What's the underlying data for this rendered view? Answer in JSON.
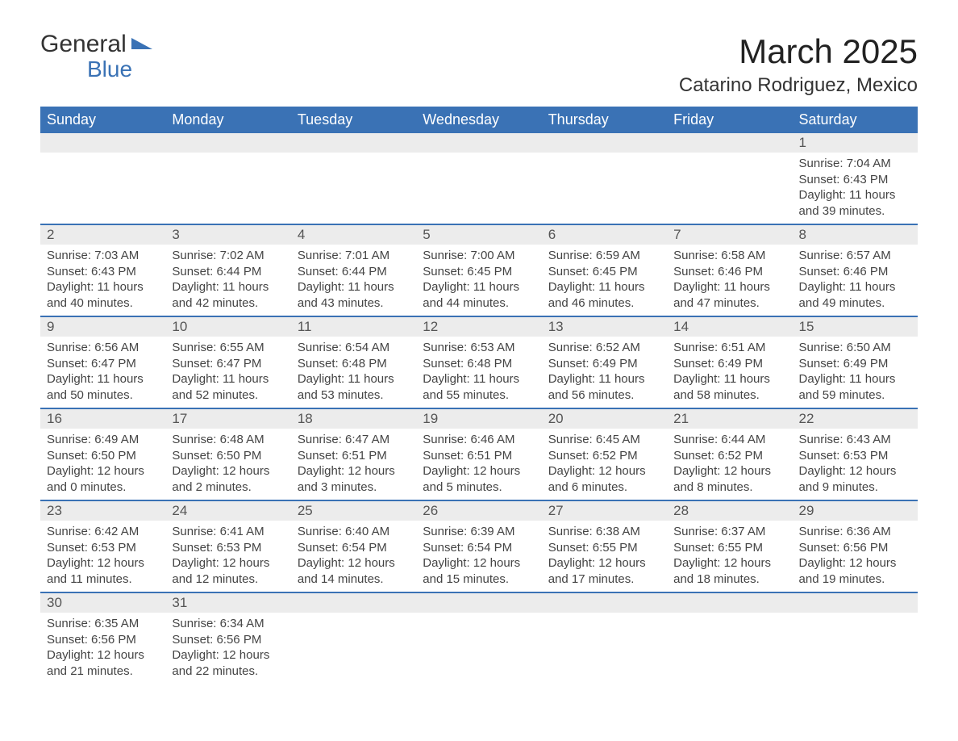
{
  "brand": {
    "name1": "General",
    "name2": "Blue",
    "logo_color": "#3a72b5"
  },
  "title": "March 2025",
  "location": "Catarino Rodriguez, Mexico",
  "header_bg": "#3a72b5",
  "header_fg": "#ffffff",
  "daynum_bg": "#ececec",
  "border_color": "#3a72b5",
  "days_of_week": [
    "Sunday",
    "Monday",
    "Tuesday",
    "Wednesday",
    "Thursday",
    "Friday",
    "Saturday"
  ],
  "weeks": [
    [
      null,
      null,
      null,
      null,
      null,
      null,
      {
        "n": "1",
        "sunrise": "7:04 AM",
        "sunset": "6:43 PM",
        "daylight": "11 hours and 39 minutes."
      }
    ],
    [
      {
        "n": "2",
        "sunrise": "7:03 AM",
        "sunset": "6:43 PM",
        "daylight": "11 hours and 40 minutes."
      },
      {
        "n": "3",
        "sunrise": "7:02 AM",
        "sunset": "6:44 PM",
        "daylight": "11 hours and 42 minutes."
      },
      {
        "n": "4",
        "sunrise": "7:01 AM",
        "sunset": "6:44 PM",
        "daylight": "11 hours and 43 minutes."
      },
      {
        "n": "5",
        "sunrise": "7:00 AM",
        "sunset": "6:45 PM",
        "daylight": "11 hours and 44 minutes."
      },
      {
        "n": "6",
        "sunrise": "6:59 AM",
        "sunset": "6:45 PM",
        "daylight": "11 hours and 46 minutes."
      },
      {
        "n": "7",
        "sunrise": "6:58 AM",
        "sunset": "6:46 PM",
        "daylight": "11 hours and 47 minutes."
      },
      {
        "n": "8",
        "sunrise": "6:57 AM",
        "sunset": "6:46 PM",
        "daylight": "11 hours and 49 minutes."
      }
    ],
    [
      {
        "n": "9",
        "sunrise": "6:56 AM",
        "sunset": "6:47 PM",
        "daylight": "11 hours and 50 minutes."
      },
      {
        "n": "10",
        "sunrise": "6:55 AM",
        "sunset": "6:47 PM",
        "daylight": "11 hours and 52 minutes."
      },
      {
        "n": "11",
        "sunrise": "6:54 AM",
        "sunset": "6:48 PM",
        "daylight": "11 hours and 53 minutes."
      },
      {
        "n": "12",
        "sunrise": "6:53 AM",
        "sunset": "6:48 PM",
        "daylight": "11 hours and 55 minutes."
      },
      {
        "n": "13",
        "sunrise": "6:52 AM",
        "sunset": "6:49 PM",
        "daylight": "11 hours and 56 minutes."
      },
      {
        "n": "14",
        "sunrise": "6:51 AM",
        "sunset": "6:49 PM",
        "daylight": "11 hours and 58 minutes."
      },
      {
        "n": "15",
        "sunrise": "6:50 AM",
        "sunset": "6:49 PM",
        "daylight": "11 hours and 59 minutes."
      }
    ],
    [
      {
        "n": "16",
        "sunrise": "6:49 AM",
        "sunset": "6:50 PM",
        "daylight": "12 hours and 0 minutes."
      },
      {
        "n": "17",
        "sunrise": "6:48 AM",
        "sunset": "6:50 PM",
        "daylight": "12 hours and 2 minutes."
      },
      {
        "n": "18",
        "sunrise": "6:47 AM",
        "sunset": "6:51 PM",
        "daylight": "12 hours and 3 minutes."
      },
      {
        "n": "19",
        "sunrise": "6:46 AM",
        "sunset": "6:51 PM",
        "daylight": "12 hours and 5 minutes."
      },
      {
        "n": "20",
        "sunrise": "6:45 AM",
        "sunset": "6:52 PM",
        "daylight": "12 hours and 6 minutes."
      },
      {
        "n": "21",
        "sunrise": "6:44 AM",
        "sunset": "6:52 PM",
        "daylight": "12 hours and 8 minutes."
      },
      {
        "n": "22",
        "sunrise": "6:43 AM",
        "sunset": "6:53 PM",
        "daylight": "12 hours and 9 minutes."
      }
    ],
    [
      {
        "n": "23",
        "sunrise": "6:42 AM",
        "sunset": "6:53 PM",
        "daylight": "12 hours and 11 minutes."
      },
      {
        "n": "24",
        "sunrise": "6:41 AM",
        "sunset": "6:53 PM",
        "daylight": "12 hours and 12 minutes."
      },
      {
        "n": "25",
        "sunrise": "6:40 AM",
        "sunset": "6:54 PM",
        "daylight": "12 hours and 14 minutes."
      },
      {
        "n": "26",
        "sunrise": "6:39 AM",
        "sunset": "6:54 PM",
        "daylight": "12 hours and 15 minutes."
      },
      {
        "n": "27",
        "sunrise": "6:38 AM",
        "sunset": "6:55 PM",
        "daylight": "12 hours and 17 minutes."
      },
      {
        "n": "28",
        "sunrise": "6:37 AM",
        "sunset": "6:55 PM",
        "daylight": "12 hours and 18 minutes."
      },
      {
        "n": "29",
        "sunrise": "6:36 AM",
        "sunset": "6:56 PM",
        "daylight": "12 hours and 19 minutes."
      }
    ],
    [
      {
        "n": "30",
        "sunrise": "6:35 AM",
        "sunset": "6:56 PM",
        "daylight": "12 hours and 21 minutes."
      },
      {
        "n": "31",
        "sunrise": "6:34 AM",
        "sunset": "6:56 PM",
        "daylight": "12 hours and 22 minutes."
      },
      null,
      null,
      null,
      null,
      null
    ]
  ],
  "labels": {
    "sunrise": "Sunrise: ",
    "sunset": "Sunset: ",
    "daylight": "Daylight: "
  }
}
